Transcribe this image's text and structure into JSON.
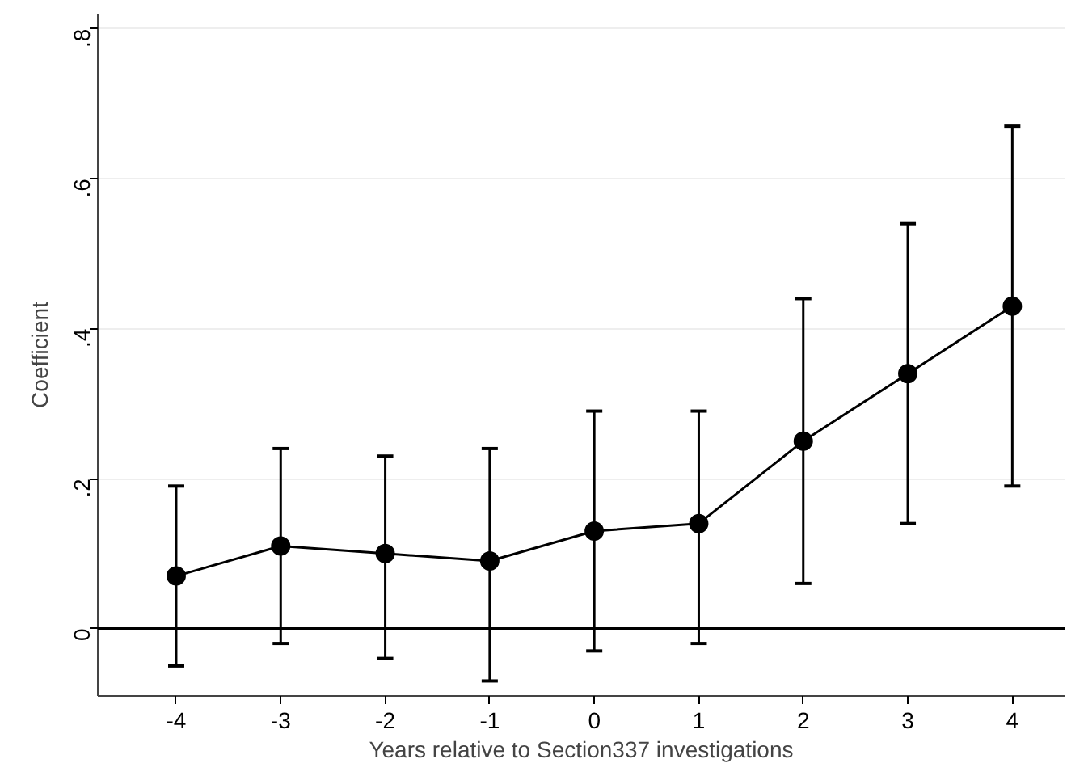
{
  "chart_data": {
    "type": "line",
    "xlabel": "Years relative to Section337 investigations",
    "ylabel": "Coefficient",
    "x": [
      -4,
      -3,
      -2,
      -1,
      0,
      1,
      2,
      3,
      4
    ],
    "series": [
      {
        "color": "#000000",
        "values": [
          0.07,
          0.11,
          0.1,
          0.09,
          0.13,
          0.14,
          0.25,
          0.34,
          0.43
        ],
        "errors": [
          [
            -0.05,
            0.19
          ],
          [
            -0.02,
            0.24
          ],
          [
            -0.04,
            0.23
          ],
          [
            -0.07,
            0.24
          ],
          [
            -0.03,
            0.29
          ],
          [
            -0.02,
            0.29
          ],
          [
            0.06,
            0.44
          ],
          [
            0.14,
            0.54
          ],
          [
            0.19,
            0.67
          ]
        ]
      }
    ],
    "xlim": [
      -4.75,
      4.5
    ],
    "ylim": [
      -0.09,
      0.82
    ],
    "xticks": [
      -4,
      -3,
      -2,
      -1,
      0,
      1,
      2,
      3,
      4
    ],
    "yticks": [
      {
        "value": 0,
        "label": "0"
      },
      {
        "value": 0.2,
        "label": ".2"
      },
      {
        "value": 0.4,
        "label": ".4"
      },
      {
        "value": 0.6,
        "label": ".6"
      },
      {
        "value": 0.8,
        "label": ".8"
      }
    ],
    "ref_lines": [
      {
        "axis": "y",
        "value": 0,
        "color": "#000000"
      }
    ],
    "grid": "y",
    "marker": "circle",
    "line_style": "solid"
  }
}
